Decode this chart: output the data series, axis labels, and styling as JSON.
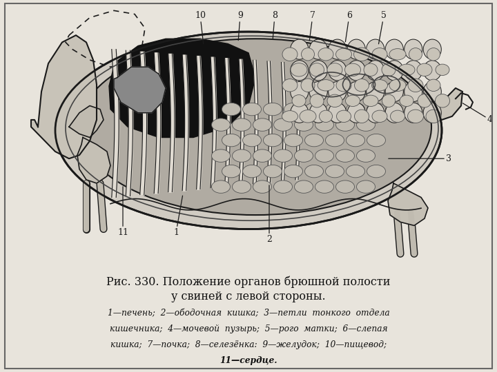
{
  "bg_color": "#e8e4dc",
  "figure_bg": "#e8e4dc",
  "title_line1": "Рис. 330. Положение органов брюшной полости",
  "title_line2": "у свиней с левой стороны.",
  "caption_line1": "1—печень;  2—ободочная  кишка;  3—петли  тонкого  отдела",
  "caption_line2": "кишечника;  4—мочевой  пузырь;  5—рого  матки;  6—слепая",
  "caption_line3": "кишка;  7—почка;  8—селезёнка:  9—желудок;  10—пищевод;",
  "caption_line4": "11—сердце.",
  "title_fontsize": 11.5,
  "caption_fontsize": 8.8,
  "figsize": [
    7.2,
    5.4
  ],
  "dpi": 100
}
